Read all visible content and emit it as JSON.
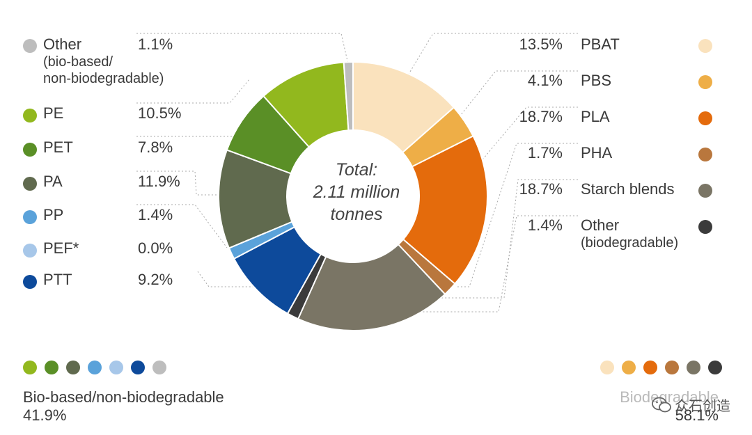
{
  "chart_data": {
    "type": "pie",
    "total_label": [
      "Total:",
      "2.11 million",
      "tonnes"
    ],
    "slices": [
      {
        "name": "PBAT",
        "value": 13.5,
        "label": "13.5%",
        "color": "#fae2bd",
        "side": "right"
      },
      {
        "name": "PBS",
        "value": 4.1,
        "label": "4.1%",
        "color": "#eeae47",
        "side": "right"
      },
      {
        "name": "PLA",
        "value": 18.7,
        "label": "18.7%",
        "color": "#e46b0c",
        "side": "right"
      },
      {
        "name": "PHA",
        "value": 1.7,
        "label": "1.7%",
        "color": "#b9773d",
        "side": "right"
      },
      {
        "name": "Starch blends",
        "value": 18.7,
        "label": "18.7%",
        "color": "#7a7565",
        "side": "right"
      },
      {
        "name": "Other",
        "sub": "(biodegradable)",
        "value": 1.4,
        "label": "1.4%",
        "color": "#3b3b3b",
        "side": "right"
      },
      {
        "name": "PTT",
        "value": 9.2,
        "label": "9.2%",
        "color": "#0d4a9b",
        "side": "left"
      },
      {
        "name": "PEF*",
        "value": 0.0,
        "label": "0.0%",
        "color": "#a7c7e9",
        "side": "left"
      },
      {
        "name": "PP",
        "value": 1.4,
        "label": "1.4%",
        "color": "#5aa2da",
        "side": "left"
      },
      {
        "name": "PA",
        "value": 11.9,
        "label": "11.9%",
        "color": "#606a4e",
        "side": "left"
      },
      {
        "name": "PET",
        "value": 7.8,
        "label": "7.8%",
        "color": "#5a8f26",
        "side": "left"
      },
      {
        "name": "PE",
        "value": 10.5,
        "label": "10.5%",
        "color": "#92b81e",
        "side": "left"
      },
      {
        "name": "Other",
        "sub": "(bio-based/ non-biodegradable)",
        "value": 1.1,
        "label": "1.1%",
        "color": "#bdbdbd",
        "side": "left"
      }
    ],
    "groups": [
      {
        "name": "Bio-based/non-biodegradable",
        "value": "41.9%"
      },
      {
        "name": "Biodegradable",
        "value": "58.1%"
      }
    ]
  },
  "left_legend": [
    {
      "name": "Other",
      "sub1": "(bio-based/",
      "sub2": "non-biodegradable)",
      "pct": "1.1%",
      "color": "#bdbdbd"
    },
    {
      "name": "PE",
      "pct": "10.5%",
      "color": "#92b81e"
    },
    {
      "name": "PET",
      "pct": "7.8%",
      "color": "#5a8f26"
    },
    {
      "name": "PA",
      "pct": "11.9%",
      "color": "#606a4e"
    },
    {
      "name": "PP",
      "pct": "1.4%",
      "color": "#5aa2da"
    },
    {
      "name": "PEF*",
      "pct": "0.0%",
      "color": "#a7c7e9"
    },
    {
      "name": "PTT",
      "pct": "9.2%",
      "color": "#0d4a9b"
    }
  ],
  "right_legend": [
    {
      "name": "PBAT",
      "pct": "13.5%",
      "color": "#fae2bd"
    },
    {
      "name": "PBS",
      "pct": "4.1%",
      "color": "#eeae47"
    },
    {
      "name": "PLA",
      "pct": "18.7%",
      "color": "#e46b0c"
    },
    {
      "name": "PHA",
      "pct": "1.7%",
      "color": "#b9773d"
    },
    {
      "name": "Starch blends",
      "pct": "18.7%",
      "color": "#7a7565"
    },
    {
      "name": "Other",
      "sub1": "(biodegradable)",
      "pct": "1.4%",
      "color": "#3b3b3b"
    }
  ],
  "summary": {
    "left_label": "Bio-based/non-biodegradable",
    "left_value": "41.9%",
    "left_colors": [
      "#92b81e",
      "#5a8f26",
      "#606a4e",
      "#5aa2da",
      "#a7c7e9",
      "#0d4a9b",
      "#bdbdbd"
    ],
    "right_label": "Biodegradable",
    "right_value": "58.1%",
    "right_colors": [
      "#fae2bd",
      "#eeae47",
      "#e46b0c",
      "#b9773d",
      "#7a7565",
      "#3b3b3b"
    ]
  },
  "watermark": {
    "text": "众石创造",
    "icon": "wechat-icon"
  }
}
